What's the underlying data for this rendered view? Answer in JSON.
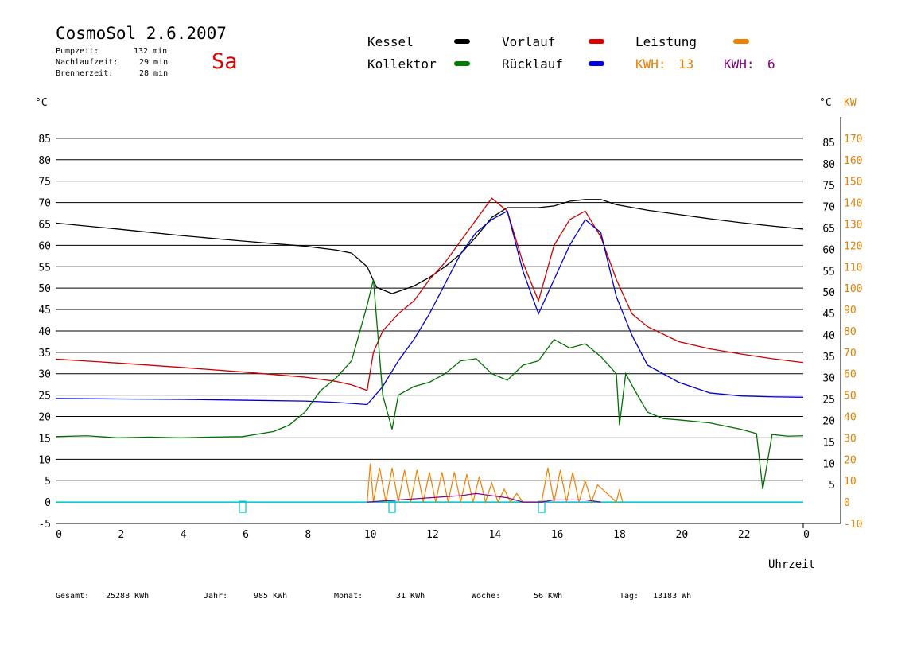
{
  "header": {
    "title": "CosmoSol 2.6.2007",
    "day": "Sa",
    "stats": [
      {
        "label": "Pumpzeit:",
        "value": "132 min"
      },
      {
        "label": "Nachlaufzeit:",
        "value": "29 min"
      },
      {
        "label": "Brennerzeit:",
        "value": "28 min"
      }
    ]
  },
  "legend": {
    "kessel": {
      "label": "Kessel",
      "color": "#000000"
    },
    "vorlauf": {
      "label": "Vorlauf",
      "color": "#e00000"
    },
    "leistung": {
      "label": "Leistung",
      "color": "#f08000"
    },
    "kollektor": {
      "label": "Kollektor",
      "color": "#008000"
    },
    "ruecklauf": {
      "label": "Rücklauf",
      "color": "#0000e0"
    },
    "kwh1": {
      "label": "KWH:",
      "value": "13",
      "color": "#f08000"
    },
    "kwh2": {
      "label": "KWH:",
      "value": "6",
      "color": "#800080"
    }
  },
  "footer": [
    {
      "label": "Gesamt:",
      "value": "25288 KWh"
    },
    {
      "label": "Jahr:",
      "value": "985 KWh"
    },
    {
      "label": "Monat:",
      "value": "31 KWh"
    },
    {
      "label": "Woche:",
      "value": "56 KWh"
    },
    {
      "label": "Tag:",
      "value": "13183 Wh"
    }
  ],
  "chart_data": {
    "type": "line",
    "title": "",
    "xlabel": "Uhrzeit",
    "ylabel_left": "°C",
    "ylabel_right_temp": "°C",
    "ylabel_right_power": "KW",
    "xlim": [
      0,
      24
    ],
    "ylim": [
      -5,
      90
    ],
    "x_ticks": [
      "0",
      "2",
      "4",
      "6",
      "8",
      "10",
      "12",
      "14",
      "16",
      "18",
      "20",
      "22",
      "0"
    ],
    "y_left_ticks": [
      "85",
      "80",
      "75",
      "70",
      "65",
      "60",
      "55",
      "50",
      "45",
      "40",
      "35",
      "30",
      "25",
      "20",
      "15",
      "10",
      "5",
      "0",
      "-5"
    ],
    "y_right_temp_ticks": [
      "85",
      "80",
      "75",
      "70",
      "65",
      "60",
      "55",
      "50",
      "45",
      "40",
      "35",
      "30",
      "25",
      "20",
      "15",
      "10",
      "5"
    ],
    "y_right_power_ticks": [
      "170",
      "160",
      "150",
      "140",
      "130",
      "120",
      "110",
      "100",
      "90",
      "80",
      "70",
      "60",
      "50",
      "40",
      "30",
      "20",
      "10",
      "0",
      "-10"
    ],
    "grid": "horizontal",
    "series": [
      {
        "name": "Kessel",
        "color": "#000000",
        "x": [
          0,
          2,
          4,
          6,
          8,
          9,
          9.5,
          10,
          10.3,
          10.8,
          11.5,
          12,
          12.5,
          13,
          13.5,
          14,
          14.5,
          15,
          15.5,
          16,
          16.5,
          17,
          17.5,
          18,
          19,
          20,
          21,
          22,
          23,
          24
        ],
        "y": [
          65.2,
          63.8,
          62.3,
          61,
          59.8,
          58.9,
          58.2,
          55,
          50.2,
          48.7,
          50.5,
          52.5,
          55,
          58,
          62,
          66.5,
          68.8,
          68.8,
          68.8,
          69.2,
          70.3,
          70.7,
          70.7,
          69.5,
          68.2,
          67.2,
          66.2,
          65.3,
          64.5,
          63.8
        ]
      },
      {
        "name": "Vorlauf",
        "color": "#cc0000",
        "x": [
          0,
          2,
          4,
          6,
          8,
          9,
          9.5,
          10,
          10.2,
          10.5,
          11,
          11.5,
          12,
          12.5,
          13,
          13.5,
          14,
          14.5,
          15,
          15.5,
          16,
          16.5,
          17,
          17.5,
          18,
          18.5,
          19,
          20,
          21,
          22,
          23,
          24
        ],
        "y": [
          33.4,
          32.5,
          31.5,
          30.4,
          29.2,
          28.2,
          27.4,
          26.1,
          35,
          40,
          44,
          47,
          52,
          56,
          61,
          66,
          71,
          68,
          56,
          47,
          60,
          66,
          68,
          62,
          52,
          44,
          41,
          37.5,
          35.8,
          34.6,
          33.5,
          32.6
        ]
      },
      {
        "name": "Rücklauf",
        "color": "#0000cc",
        "x": [
          0,
          2,
          4,
          6,
          8,
          9,
          10,
          10.5,
          11,
          11.5,
          12,
          12.5,
          13,
          13.5,
          14,
          14.5,
          15,
          15.5,
          16,
          16.5,
          17,
          17.5,
          18,
          18.5,
          19,
          20,
          21,
          22,
          23,
          24
        ],
        "y": [
          24.2,
          24.1,
          24,
          23.8,
          23.6,
          23.3,
          22.8,
          27,
          33,
          38,
          44,
          51,
          58,
          63,
          66,
          68,
          54,
          44,
          52,
          60,
          66,
          63,
          48,
          39,
          32,
          28,
          25.5,
          24.8,
          24.6,
          24.5
        ]
      },
      {
        "name": "Kollektor",
        "color": "#007000",
        "x": [
          0,
          1,
          2,
          3,
          4,
          5,
          6,
          7,
          7.5,
          8,
          8.5,
          9,
          9.5,
          10,
          10.2,
          10.5,
          10.8,
          11,
          11.5,
          12,
          12.5,
          13,
          13.5,
          14,
          14.5,
          15,
          15.5,
          16,
          16.5,
          17,
          17.5,
          18,
          18.1,
          18.3,
          18.6,
          19,
          19.5,
          20,
          21,
          22,
          22.5,
          22.7,
          23,
          23.5,
          24
        ],
        "y": [
          15.3,
          15.5,
          15,
          15.2,
          15,
          15.2,
          15.3,
          16.5,
          18,
          21,
          26,
          29,
          33,
          46,
          52,
          25,
          17,
          25,
          27,
          28,
          30,
          33,
          33.5,
          30,
          28.5,
          32,
          33,
          38,
          36,
          37,
          34,
          30,
          18,
          30,
          26,
          21,
          19.5,
          19.2,
          18.5,
          17,
          16,
          3,
          15.8,
          15.4,
          15.5
        ]
      }
    ],
    "power_series": [
      {
        "name": "KWH: 13",
        "color": "#f08000",
        "x": [
          10,
          10.1,
          10.2,
          10.4,
          10.6,
          10.8,
          11,
          11.2,
          11.4,
          11.6,
          11.8,
          12,
          12.2,
          12.4,
          12.6,
          12.8,
          13,
          13.2,
          13.4,
          13.6,
          13.8,
          14,
          14.2,
          14.4,
          14.6,
          14.8,
          15,
          15.6,
          15.8,
          16,
          16.2,
          16.4,
          16.6,
          16.8,
          17,
          17.2,
          17.4,
          18,
          18.1,
          18.2
        ],
        "y": [
          0,
          18,
          0,
          16,
          0,
          16,
          0,
          15,
          0,
          15,
          0,
          14,
          0,
          14,
          0,
          14,
          0,
          13,
          0,
          12,
          0,
          9,
          0,
          6,
          0,
          4,
          0,
          0,
          16,
          0,
          15,
          0,
          14,
          0,
          10,
          0,
          8,
          0,
          6,
          0
        ]
      },
      {
        "name": "KWH: 6",
        "color": "#800080",
        "x": [
          10,
          11,
          12,
          13,
          13.5,
          14,
          14.5,
          15,
          15.6,
          16,
          17,
          17.5
        ],
        "y": [
          0,
          1,
          2,
          3,
          4,
          3,
          2,
          0,
          0,
          1,
          1,
          0
        ]
      }
    ],
    "baseline_series": {
      "name": "Status",
      "color": "#00c8c8",
      "value": 0,
      "dips": [
        6.0,
        10.8,
        15.6
      ]
    }
  }
}
